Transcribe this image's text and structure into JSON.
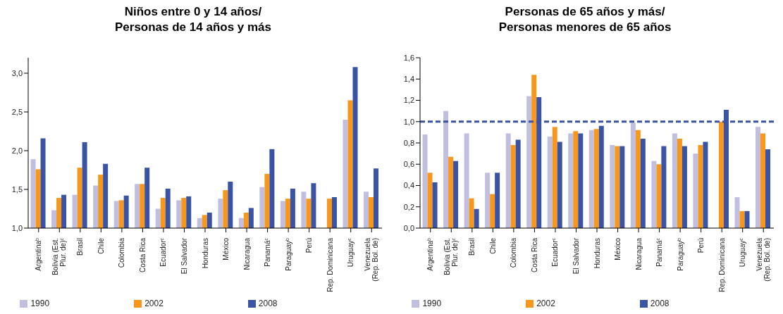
{
  "chart_data": [
    {
      "type": "bar",
      "title": "Niños entre 0 y 14 años/\nPersonas de 14 años y más",
      "categories": [
        "Argentina$^{b}$",
        "Bolivia (Est. Plur. de)$^{c}$",
        "Brasil",
        "Chile",
        "Colombia",
        "Costa Rica",
        "Ecuador$^{c}$",
        "El Salvador",
        "Honduras",
        "México",
        "Nicaragua",
        "Panamá$^{c}$",
        "Paraguay$^{b}$",
        "Perú",
        "Rep. Dominicana",
        "Uruguay$^{c}$",
        "Venezuela (Rep. Bol. de)"
      ],
      "series": [
        {
          "name": "1990",
          "color": "#c0bfe0",
          "values": [
            1.89,
            1.23,
            1.43,
            1.55,
            1.35,
            1.57,
            1.25,
            1.36,
            1.13,
            1.38,
            1.13,
            1.53,
            1.35,
            1.47,
            null,
            2.4,
            1.47
          ]
        },
        {
          "name": "2002",
          "color": "#f7981d",
          "values": [
            1.76,
            1.39,
            1.78,
            1.69,
            1.36,
            1.57,
            1.39,
            1.39,
            1.17,
            1.49,
            1.2,
            1.7,
            1.38,
            1.38,
            1.38,
            2.65,
            1.4
          ]
        },
        {
          "name": "2008",
          "color": "#3a53a4",
          "values": [
            2.16,
            1.43,
            2.11,
            1.83,
            1.42,
            1.78,
            1.51,
            1.41,
            1.2,
            1.6,
            1.26,
            2.02,
            1.51,
            1.58,
            1.4,
            3.08,
            1.77
          ]
        }
      ],
      "ylim": [
        1,
        3.2
      ],
      "yticks": [
        {
          "value": 1,
          "label": "1,0"
        },
        {
          "value": 1.5,
          "label": "1,5"
        },
        {
          "value": 2,
          "label": "2,0"
        },
        {
          "value": 2.5,
          "label": "2,5"
        },
        {
          "value": 3,
          "label": "3,0"
        }
      ],
      "grid": false,
      "legend": "bottom"
    },
    {
      "type": "bar",
      "title": "Personas de 65 años y más/\nPersonas menores de 65 años",
      "categories": [
        "Argentina$^{b}$",
        "Bolivia (Est. Plur. de)$^{c}$",
        "Brasil",
        "Chile",
        "Colombia",
        "Costa Rica",
        "Ecuador$^{c}$",
        "El Salvador",
        "Honduras",
        "México",
        "Nicaragua",
        "Panamá$^{c}$",
        "Paraguay$^{b}$",
        "Perú",
        "Rep. Dominicana",
        "Uruguay$^{c}$",
        "Venezuela (Rep. Bol. de)"
      ],
      "series": [
        {
          "name": "1990",
          "color": "#c0bfe0",
          "values": [
            0.88,
            1.1,
            0.89,
            0.52,
            0.89,
            1.24,
            0.86,
            0.89,
            0.92,
            0.78,
            0.99,
            0.63,
            0.89,
            0.7,
            null,
            0.29,
            0.95
          ]
        },
        {
          "name": "2002",
          "color": "#f7981d",
          "values": [
            0.52,
            0.67,
            0.28,
            0.32,
            0.78,
            1.44,
            0.95,
            0.91,
            0.93,
            0.77,
            0.92,
            0.6,
            0.84,
            0.78,
            1.0,
            0.16,
            0.89
          ]
        },
        {
          "name": "2008",
          "color": "#3a53a4",
          "values": [
            0.43,
            0.63,
            0.18,
            0.52,
            0.83,
            1.23,
            0.81,
            0.89,
            0.96,
            0.77,
            0.84,
            0.77,
            0.77,
            0.81,
            1.11,
            0.16,
            0.74
          ]
        }
      ],
      "ylim": [
        0,
        1.6
      ],
      "yticks": [
        {
          "value": 0,
          "label": "0,0"
        },
        {
          "value": 0.2,
          "label": "0,2"
        },
        {
          "value": 0.4,
          "label": "0,4"
        },
        {
          "value": 0.6,
          "label": "0,6"
        },
        {
          "value": 0.8,
          "label": "0,8"
        },
        {
          "value": 1,
          "label": "1,0"
        },
        {
          "value": 1.2,
          "label": "1,2"
        },
        {
          "value": 1.4,
          "label": "1,4"
        },
        {
          "value": 1.6,
          "label": "1,6"
        }
      ],
      "ref_lines": [
        {
          "axis": "y",
          "value": 1,
          "color": "#3a53a4",
          "line_style": "dashed"
        }
      ],
      "grid": false,
      "legend": "bottom"
    }
  ]
}
